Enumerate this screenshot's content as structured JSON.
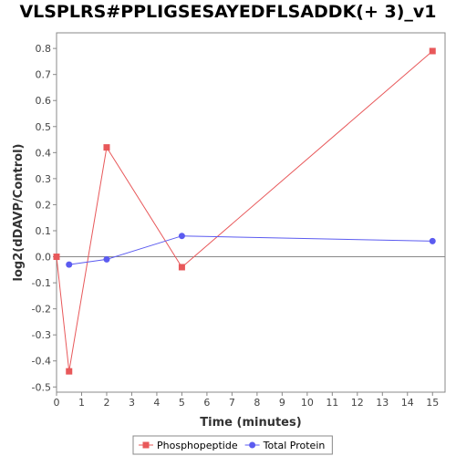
{
  "chart_data": {
    "type": "line",
    "title": "VLSPLRS#PPLIGSESAYEDFLSADDK(+ 3)_v1",
    "xlabel": "Time (minutes)",
    "ylabel": "log2(dDAVP/Control)",
    "xlim": [
      0,
      15.5
    ],
    "ylim": [
      -0.52,
      0.86
    ],
    "xticks": [
      0,
      1,
      2,
      3,
      4,
      5,
      6,
      7,
      8,
      9,
      10,
      11,
      12,
      13,
      14,
      15
    ],
    "yticks": [
      -0.5,
      -0.4,
      -0.3,
      -0.2,
      -0.1,
      0.0,
      0.1,
      0.2,
      0.3,
      0.4,
      0.5,
      0.6,
      0.7,
      0.8
    ],
    "ytick_labels": [
      "-0.5",
      "-0.4",
      "-0.3",
      "-0.2",
      "-0.1",
      "0.0",
      "0.1",
      "0.2",
      "0.3",
      "0.4",
      "0.5",
      "0.6",
      "0.7",
      "0.8"
    ],
    "zero_line": true,
    "grid": false,
    "legend_position": "bottom",
    "series": [
      {
        "name": "Phosphopeptide",
        "color": "#e8585a",
        "marker": "square",
        "x": [
          0,
          0.5,
          2,
          5,
          15
        ],
        "y": [
          0.0,
          -0.44,
          0.42,
          -0.04,
          0.79
        ]
      },
      {
        "name": "Total Protein",
        "color": "#5b5bf0",
        "marker": "circle",
        "x": [
          0.5,
          2,
          5,
          15
        ],
        "y": [
          -0.03,
          -0.01,
          0.08,
          0.06
        ]
      }
    ]
  }
}
